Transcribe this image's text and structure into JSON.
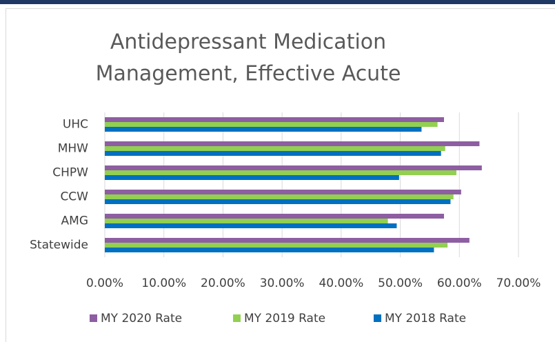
{
  "chart_data": {
    "type": "hbar",
    "title": [
      "Antidepressant Medication",
      "Management, Effective Acute"
    ],
    "categories": [
      "UHC",
      "MHW",
      "CHPW",
      "CCW",
      "AMG",
      "Statewide"
    ],
    "series": [
      {
        "name": "MY 2020 Rate",
        "color": "#8e5ea2",
        "values": [
          57.4,
          63.4,
          63.8,
          60.3,
          57.4,
          61.7
        ]
      },
      {
        "name": "MY 2019 Rate",
        "color": "#92d050",
        "values": [
          56.3,
          57.6,
          59.5,
          59.0,
          47.9,
          58.0
        ]
      },
      {
        "name": "MY 2018 Rate",
        "color": "#0070c0",
        "values": [
          53.6,
          56.9,
          49.8,
          58.5,
          49.4,
          55.7
        ]
      }
    ],
    "xlim": [
      0,
      70
    ],
    "xticks": [
      {
        "value": 0,
        "label": "0.00%"
      },
      {
        "value": 10,
        "label": "10.00%"
      },
      {
        "value": 20,
        "label": "20.00%"
      },
      {
        "value": 30,
        "label": "30.00%"
      },
      {
        "value": 40,
        "label": "40.00%"
      },
      {
        "value": 50,
        "label": "50.00%"
      },
      {
        "value": 60,
        "label": "60.00%"
      },
      {
        "value": 70,
        "label": "70.00%"
      }
    ],
    "grid": true,
    "legend": "bottom"
  }
}
